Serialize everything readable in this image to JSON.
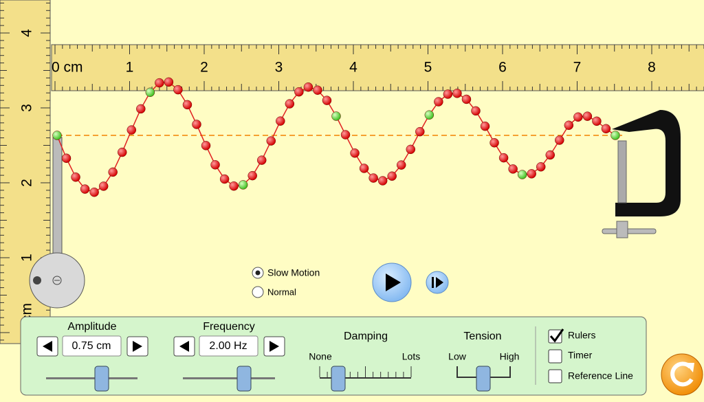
{
  "rulers": {
    "horizontal": [
      "0 cm",
      "1",
      "2",
      "3",
      "4",
      "5",
      "6",
      "7",
      "8"
    ],
    "vertical": [
      "4",
      "3",
      "2",
      "1",
      "cm"
    ]
  },
  "playback": {
    "slow_motion": "Slow Motion",
    "normal": "Normal"
  },
  "controls": {
    "amplitude": {
      "label": "Amplitude",
      "value": "0.75 cm"
    },
    "frequency": {
      "label": "Frequency",
      "value": "2.00 Hz"
    },
    "damping": {
      "label": "Damping",
      "min": "None",
      "max": "Lots"
    },
    "tension": {
      "label": "Tension",
      "min": "Low",
      "max": "High"
    },
    "checkboxes": {
      "rulers": "Rulers",
      "timer": "Timer",
      "reference_line": "Reference Line"
    }
  }
}
